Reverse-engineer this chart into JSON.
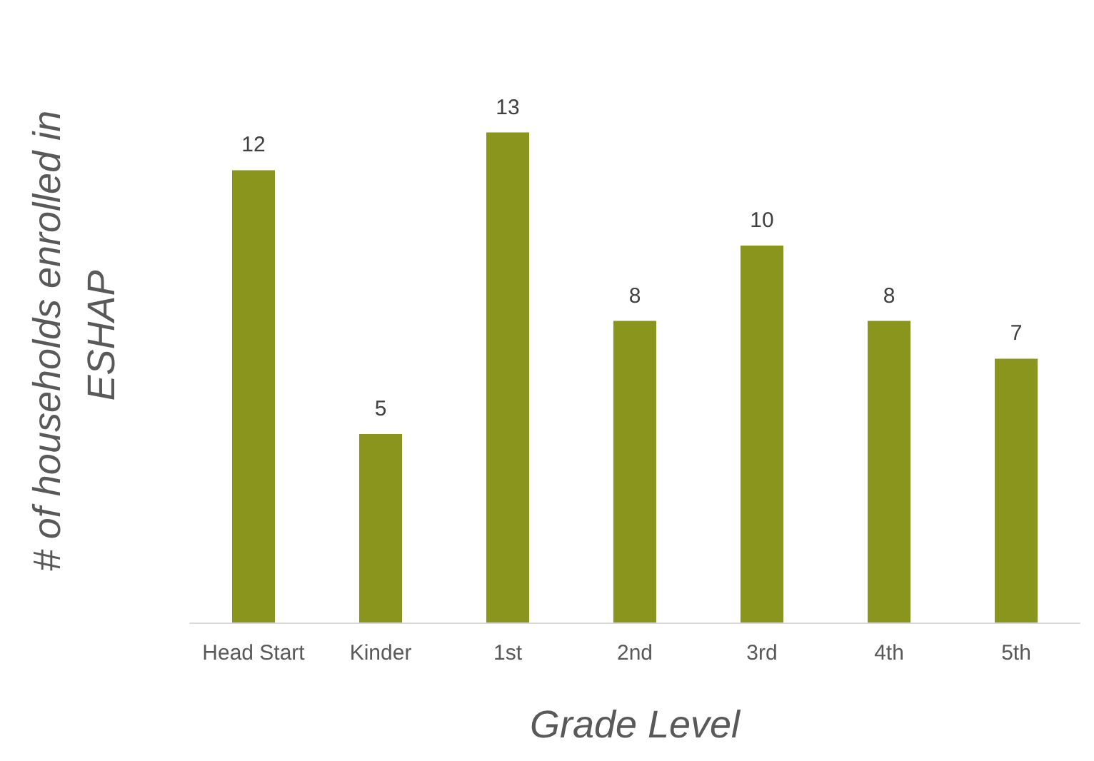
{
  "chart_data": {
    "type": "bar",
    "xlabel": "Grade Level",
    "ylabel": "# of households enrolled in ESHAP",
    "categories": [
      "Head Start",
      "Kinder",
      "1st",
      "2nd",
      "3rd",
      "4th",
      "5th"
    ],
    "values": [
      12,
      5,
      13,
      8,
      10,
      8,
      7
    ],
    "color": "#8a951e",
    "data_labels": true
  }
}
